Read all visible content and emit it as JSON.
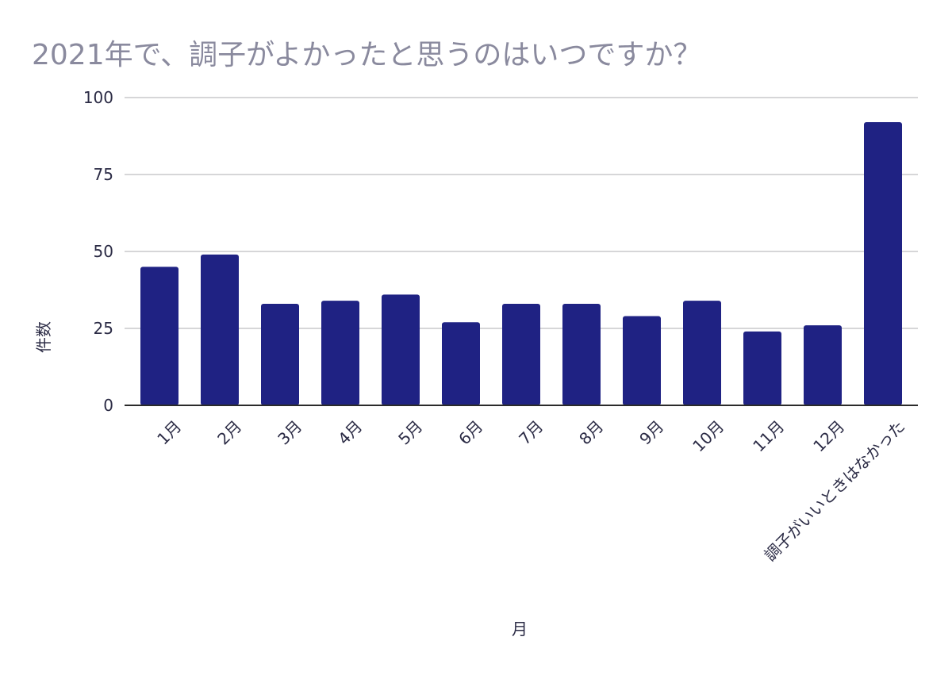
{
  "chart_data": {
    "type": "bar",
    "title": "2021年で、調子がよかったと思うのはいつですか？",
    "xlabel": "月",
    "ylabel": "件数",
    "ylim": [
      0,
      100
    ],
    "yticks": [
      0,
      25,
      50,
      75,
      100
    ],
    "grid": true,
    "legend": "none",
    "categories": [
      "1月",
      "2月",
      "3月",
      "4月",
      "5月",
      "6月",
      "7月",
      "8月",
      "9月",
      "10月",
      "11月",
      "12月",
      "調子がいいときはなかった"
    ],
    "series": [
      {
        "values": [
          45,
          49,
          33,
          34,
          36,
          27,
          33,
          33,
          29,
          34,
          24,
          26,
          92
        ],
        "color": "#1f2283"
      }
    ]
  },
  "colors": {
    "bar": "#1f2283",
    "grid": "#c8c8cc",
    "baseline": "#2b2b2b",
    "title": "#8a8a9e",
    "text": "#2b2b45"
  }
}
